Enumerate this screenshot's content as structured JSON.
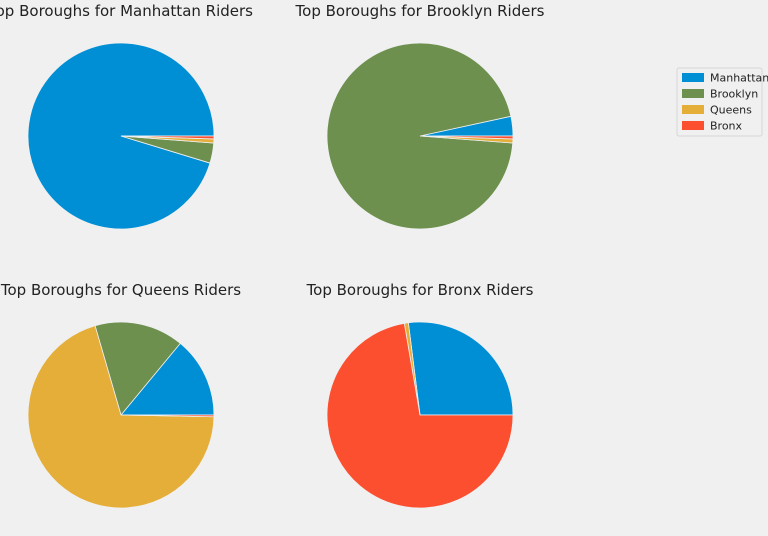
{
  "legend": {
    "placement": "top-right",
    "entries": [
      "Manhattan",
      "Brooklyn",
      "Queens",
      "Bronx"
    ]
  },
  "colors": {
    "Manhattan": "#008fd5",
    "Brooklyn": "#6d904f",
    "Queens": "#e5ae38",
    "Bronx": "#fc4f30"
  },
  "chart_data": [
    {
      "type": "pie",
      "title": "Top Boroughs for Manhattan Riders",
      "labels": [
        "Manhattan",
        "Brooklyn",
        "Queens",
        "Bronx"
      ],
      "values": [
        95.3,
        3.5,
        0.7,
        0.5
      ]
    },
    {
      "type": "pie",
      "title": "Top Boroughs for Brooklyn Riders",
      "labels": [
        "Manhattan",
        "Brooklyn",
        "Queens",
        "Bronx"
      ],
      "values": [
        3.4,
        95.4,
        0.7,
        0.5
      ]
    },
    {
      "type": "pie",
      "title": "Top Boroughs for Queens Riders",
      "labels": [
        "Manhattan",
        "Brooklyn",
        "Queens",
        "Bronx"
      ],
      "values": [
        14.0,
        15.5,
        70.2,
        0.3
      ]
    },
    {
      "type": "pie",
      "title": "Top Boroughs for Bronx Riders",
      "labels": [
        "Manhattan",
        "Brooklyn",
        "Queens",
        "Bronx"
      ],
      "values": [
        27.0,
        0.0,
        0.7,
        72.3
      ]
    }
  ]
}
